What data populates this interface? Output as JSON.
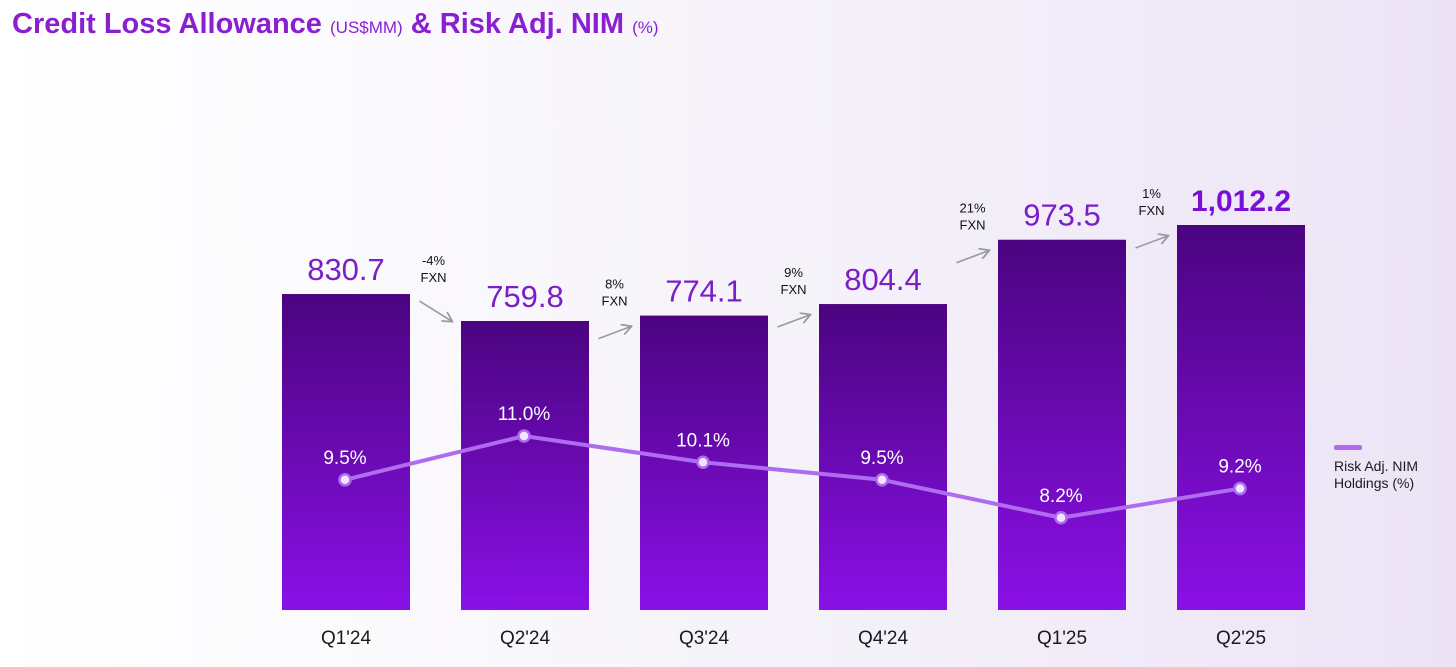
{
  "title": {
    "part1": "Credit Loss Allowance",
    "unit1": "(US$MM)",
    "part2": "& Risk Adj. NIM",
    "unit2": "(%)"
  },
  "colors": {
    "title": "#8a1fd1",
    "bar_top": "#4b0480",
    "bar_bottom": "#8a10e6",
    "bar_label": "#7a1fc8",
    "bar_label_last": "#7a10d6",
    "line": "#b06cf0",
    "arrow": "#9a9a9a"
  },
  "legend": {
    "label": "Risk Adj. NIM Holdings (%)"
  },
  "chart_data": {
    "type": "bar",
    "title": "Credit Loss Allowance (US$MM) & Risk Adj. NIM (%)",
    "categories": [
      "Q1'24",
      "Q2'24",
      "Q3'24",
      "Q4'24",
      "Q1'25",
      "Q2'25"
    ],
    "series": [
      {
        "name": "Credit Loss Allowance (US$MM)",
        "type": "bar",
        "values": [
          830.7,
          759.8,
          774.1,
          804.4,
          973.5,
          1012.2
        ],
        "labels": [
          "830.7",
          "759.8",
          "774.1",
          "804.4",
          "973.5",
          "1,012.2"
        ]
      },
      {
        "name": "Risk Adj. NIM Holdings (%)",
        "type": "line",
        "values": [
          9.5,
          11.0,
          10.1,
          9.5,
          8.2,
          9.2
        ],
        "labels": [
          "9.5%",
          "11.0%",
          "10.1%",
          "9.5%",
          "8.2%",
          "9.2%"
        ]
      }
    ],
    "growth_annotations": [
      {
        "pct": "-4%",
        "basis": "FXN",
        "direction": "down"
      },
      {
        "pct": "8%",
        "basis": "FXN",
        "direction": "up"
      },
      {
        "pct": "9%",
        "basis": "FXN",
        "direction": "up"
      },
      {
        "pct": "21%",
        "basis": "FXN",
        "direction": "up"
      },
      {
        "pct": "1%",
        "basis": "FXN",
        "direction": "up"
      }
    ],
    "xlabel": "",
    "ylabel": "",
    "grid": false,
    "legend_position": "right"
  }
}
